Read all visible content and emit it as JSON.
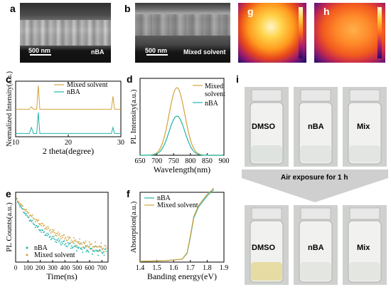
{
  "panels": {
    "a": {
      "letter": "a",
      "scale": "500 nm",
      "caption": "nBA"
    },
    "b": {
      "letter": "b",
      "scale": "500 nm",
      "caption": "Mixed solvent"
    },
    "g": {
      "letter": "g"
    },
    "h": {
      "letter": "h"
    },
    "c": {
      "letter": "c"
    },
    "d": {
      "letter": "d"
    },
    "e": {
      "letter": "e"
    },
    "f": {
      "letter": "f"
    },
    "i": {
      "letter": "i",
      "vials_top": [
        "DMSO",
        "nBA",
        "Mix"
      ],
      "arrow_text": "Air exposure for 1 h",
      "vials_bottom": [
        "DMSO",
        "nBA",
        "Mix"
      ]
    }
  },
  "chart_data": [
    {
      "id": "c",
      "type": "line",
      "xlabel": "2 theta(degree)",
      "ylabel": "Normalized Intensity(a.u.)",
      "xlim": [
        10,
        30
      ],
      "xticks": [
        10,
        20,
        30
      ],
      "series": [
        {
          "name": "Mixed solvent",
          "color": "#d4a23a",
          "x": [
            10,
            12.6,
            13.0,
            13.4,
            14.0,
            14.3,
            14.6,
            20,
            28.2,
            28.5,
            28.8,
            30
          ],
          "y": [
            0.02,
            0.02,
            0.12,
            0.02,
            0.02,
            1.0,
            0.02,
            0.02,
            0.02,
            0.55,
            0.02,
            0.02
          ]
        },
        {
          "name": "nBA",
          "color": "#1fb5a9",
          "x": [
            10,
            12.6,
            13.0,
            13.4,
            14.0,
            14.3,
            14.6,
            20,
            28.2,
            28.5,
            28.8,
            30
          ],
          "y": [
            0.02,
            0.02,
            0.3,
            0.02,
            0.02,
            1.0,
            0.02,
            0.02,
            0.02,
            0.3,
            0.02,
            0.02
          ]
        }
      ]
    },
    {
      "id": "d",
      "type": "line",
      "xlabel": "Wavelength(nm)",
      "ylabel": "PL Intensity(a.u.)",
      "xlim": [
        650,
        900
      ],
      "xticks": [
        650,
        700,
        750,
        800,
        850,
        900
      ],
      "series": [
        {
          "name": "Mixed solvent",
          "color": "#d4a23a",
          "peak_x": 760,
          "peak_y": 1.0,
          "fwhm": 55
        },
        {
          "name": "nBA",
          "color": "#1fb5a9",
          "peak_x": 760,
          "peak_y": 0.58,
          "fwhm": 55
        }
      ],
      "legend_labels": [
        "Mixed",
        "solvent",
        "nBA"
      ]
    },
    {
      "id": "e",
      "type": "scatter",
      "xlabel": "Time(ns)",
      "ylabel": "PL Counts(a.u.)",
      "xlim": [
        0,
        750
      ],
      "xticks": [
        0,
        100,
        200,
        300,
        400,
        500,
        600,
        700
      ],
      "series": [
        {
          "name": "nBA",
          "color": "#1fb5a9",
          "decay_tau": 240
        },
        {
          "name": "Mixed solvent",
          "color": "#d4a23a",
          "decay_tau": 330
        }
      ]
    },
    {
      "id": "f",
      "type": "line",
      "xlabel": "Banding energy(eV)",
      "ylabel": "Absorption(a.u.)",
      "xlim": [
        1.4,
        1.9
      ],
      "xticks": [
        1.4,
        1.5,
        1.6,
        1.7,
        1.8,
        1.9
      ],
      "series": [
        {
          "name": "nBA",
          "color": "#1fb5a9",
          "x": [
            1.4,
            1.55,
            1.65,
            1.68,
            1.7,
            1.72,
            1.75,
            1.8,
            1.84
          ],
          "y": [
            0.01,
            0.02,
            0.04,
            0.12,
            0.35,
            0.62,
            0.78,
            0.93,
            1.02
          ]
        },
        {
          "name": "Mixed solvent",
          "color": "#d4a23a",
          "x": [
            1.4,
            1.55,
            1.65,
            1.68,
            1.7,
            1.72,
            1.75,
            1.8,
            1.84
          ],
          "y": [
            0.01,
            0.02,
            0.04,
            0.13,
            0.37,
            0.64,
            0.8,
            0.95,
            1.04
          ]
        }
      ]
    }
  ]
}
